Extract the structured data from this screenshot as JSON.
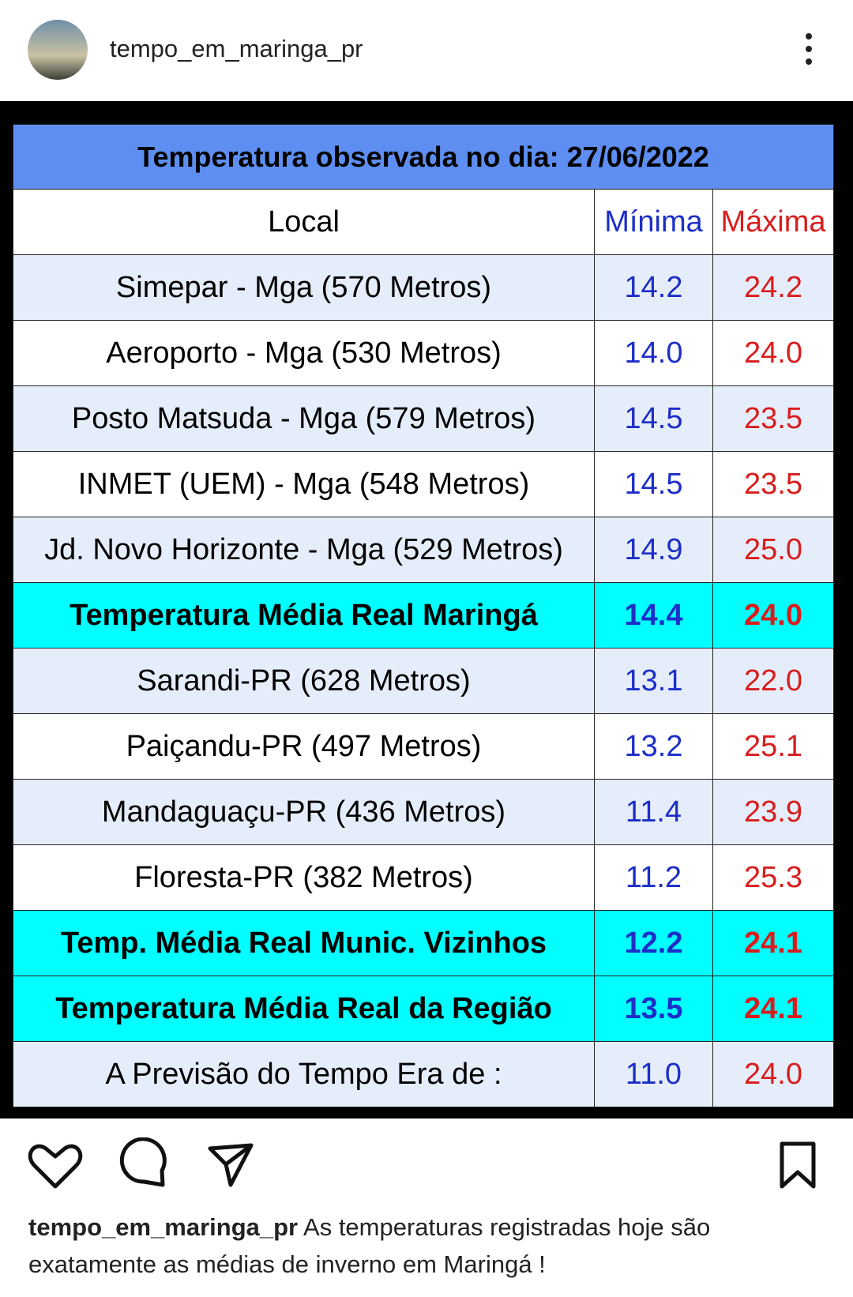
{
  "header": {
    "username": "tempo_em_maringa_pr"
  },
  "table": {
    "title": "Temperatura observada no dia: 27/06/2022",
    "columns": [
      "Local",
      "Mínima",
      "Máxima"
    ],
    "rows": [
      {
        "local": "Simepar - Mga  (570 Metros)",
        "min": "14.2",
        "max": "24.2",
        "highlight": false
      },
      {
        "local": "Aeroporto - Mga (530 Metros)",
        "min": "14.0",
        "max": "24.0",
        "highlight": false
      },
      {
        "local": "Posto Matsuda - Mga (579 Metros)",
        "min": "14.5",
        "max": "23.5",
        "highlight": false
      },
      {
        "local": "INMET (UEM) - Mga  (548 Metros)",
        "min": "14.5",
        "max": "23.5",
        "highlight": false
      },
      {
        "local": "Jd. Novo Horizonte - Mga (529 Metros)",
        "min": "14.9",
        "max": "25.0",
        "highlight": false
      },
      {
        "local": "Temperatura Média Real Maringá",
        "min": "14.4",
        "max": "24.0",
        "highlight": true
      },
      {
        "local": "Sarandi-PR  (628 Metros)",
        "min": "13.1",
        "max": "22.0",
        "highlight": false
      },
      {
        "local": "Paiçandu-PR (497 Metros)",
        "min": "13.2",
        "max": "25.1",
        "highlight": false
      },
      {
        "local": "Mandaguaçu-PR (436 Metros)",
        "min": "11.4",
        "max": "23.9",
        "highlight": false
      },
      {
        "local": "Floresta-PR (382 Metros)",
        "min": "11.2",
        "max": "25.3",
        "highlight": false
      },
      {
        "local": "Temp. Média Real Munic. Vizinhos",
        "min": "12.2",
        "max": "24.1",
        "highlight": true
      },
      {
        "local": "Temperatura Média Real da Região",
        "min": "13.5",
        "max": "24.1",
        "highlight": true
      },
      {
        "local": "A Previsão do Tempo Era de :",
        "min": "11.0",
        "max": "24.0",
        "highlight": false
      }
    ]
  },
  "caption": {
    "username": "tempo_em_maringa_pr",
    "text": "As temperaturas registradas hoje são exatamente as médias de inverno em Maringá !"
  }
}
